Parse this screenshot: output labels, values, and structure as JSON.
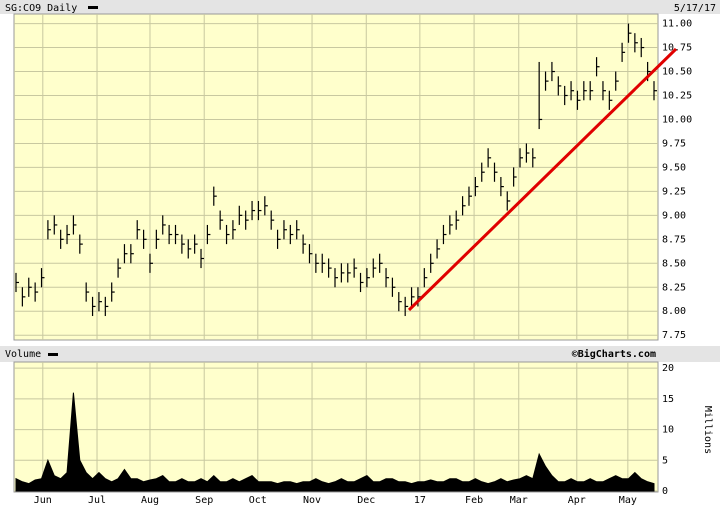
{
  "chart_data": [
    {
      "type": "ohlc",
      "title": "SG:CO9 Daily",
      "date": "5/17/17",
      "color": "#000000",
      "high": [
        8.4,
        8.25,
        8.35,
        8.3,
        8.45,
        8.95,
        9.0,
        8.85,
        8.9,
        9.0,
        8.8,
        8.3,
        8.15,
        8.2,
        8.15,
        8.3,
        8.55,
        8.7,
        8.7,
        8.95,
        8.85,
        8.6,
        8.85,
        9.0,
        8.9,
        8.9,
        8.8,
        8.75,
        8.8,
        8.65,
        8.9,
        9.3,
        9.05,
        8.9,
        8.95,
        9.1,
        9.05,
        9.15,
        9.15,
        9.2,
        9.05,
        8.85,
        8.95,
        8.9,
        8.95,
        8.8,
        8.7,
        8.6,
        8.6,
        8.55,
        8.45,
        8.5,
        8.5,
        8.55,
        8.4,
        8.45,
        8.55,
        8.6,
        8.45,
        8.35,
        8.2,
        8.15,
        8.25,
        8.25,
        8.45,
        8.6,
        8.75,
        8.9,
        9.0,
        9.05,
        9.2,
        9.3,
        9.4,
        9.55,
        9.7,
        9.55,
        9.4,
        9.25,
        9.5,
        9.7,
        9.75,
        9.7,
        10.6,
        10.5,
        10.6,
        10.45,
        10.35,
        10.4,
        10.3,
        10.4,
        10.4,
        10.65,
        10.4,
        10.3,
        10.5,
        10.8,
        11.0,
        10.9,
        10.85,
        10.6,
        10.4
      ],
      "low": [
        8.2,
        8.05,
        8.15,
        8.1,
        8.25,
        8.75,
        8.8,
        8.65,
        8.7,
        8.8,
        8.6,
        8.1,
        7.95,
        8.0,
        7.95,
        8.1,
        8.35,
        8.5,
        8.5,
        8.75,
        8.65,
        8.4,
        8.65,
        8.8,
        8.7,
        8.7,
        8.6,
        8.55,
        8.6,
        8.45,
        8.7,
        9.1,
        8.85,
        8.7,
        8.75,
        8.9,
        8.85,
        8.95,
        8.95,
        9.0,
        8.85,
        8.65,
        8.75,
        8.7,
        8.75,
        8.6,
        8.5,
        8.4,
        8.4,
        8.35,
        8.25,
        8.3,
        8.3,
        8.35,
        8.2,
        8.25,
        8.35,
        8.4,
        8.25,
        8.15,
        8.0,
        7.95,
        8.05,
        8.05,
        8.25,
        8.4,
        8.55,
        8.7,
        8.8,
        8.85,
        9.0,
        9.1,
        9.2,
        9.35,
        9.5,
        9.35,
        9.2,
        9.05,
        9.3,
        9.5,
        9.55,
        9.5,
        9.9,
        10.3,
        10.4,
        10.25,
        10.15,
        10.2,
        10.1,
        10.2,
        10.2,
        10.45,
        10.2,
        10.1,
        10.3,
        10.6,
        10.8,
        10.7,
        10.65,
        10.4,
        10.2
      ],
      "values": [
        8.3,
        8.15,
        8.25,
        8.2,
        8.35,
        8.85,
        8.9,
        8.75,
        8.8,
        8.9,
        8.7,
        8.2,
        8.05,
        8.1,
        8.05,
        8.2,
        8.45,
        8.6,
        8.6,
        8.85,
        8.75,
        8.5,
        8.75,
        8.9,
        8.8,
        8.8,
        8.7,
        8.65,
        8.7,
        8.55,
        8.8,
        9.2,
        8.95,
        8.8,
        8.85,
        9.0,
        8.95,
        9.05,
        9.05,
        9.1,
        8.95,
        8.75,
        8.85,
        8.8,
        8.85,
        8.7,
        8.6,
        8.5,
        8.5,
        8.45,
        8.35,
        8.4,
        8.4,
        8.45,
        8.3,
        8.35,
        8.45,
        8.5,
        8.35,
        8.25,
        8.1,
        8.05,
        8.15,
        8.15,
        8.35,
        8.5,
        8.65,
        8.8,
        8.9,
        8.95,
        9.1,
        9.2,
        9.3,
        9.45,
        9.6,
        9.45,
        9.3,
        9.15,
        9.4,
        9.6,
        9.65,
        9.6,
        10.0,
        10.4,
        10.5,
        10.35,
        10.25,
        10.3,
        10.2,
        10.3,
        10.3,
        10.55,
        10.3,
        10.2,
        10.4,
        10.7,
        10.9,
        10.8,
        10.75,
        10.5,
        10.3
      ],
      "ylim": [
        7.7,
        11.1
      ],
      "yticks": [
        {
          "value": 7.75,
          "label": "7.75"
        },
        {
          "value": 8,
          "label": "8.00"
        },
        {
          "value": 8.25,
          "label": "8.25"
        },
        {
          "value": 8.5,
          "label": "8.50"
        },
        {
          "value": 8.75,
          "label": "8.75"
        },
        {
          "value": 9,
          "label": "9.00"
        },
        {
          "value": 9.25,
          "label": "9.25"
        },
        {
          "value": 9.5,
          "label": "9.50"
        },
        {
          "value": 9.75,
          "label": "9.75"
        },
        {
          "value": 10,
          "label": "10.00"
        },
        {
          "value": 10.25,
          "label": "10.25"
        },
        {
          "value": 10.5,
          "label": "10.50"
        },
        {
          "value": 10.75,
          "label": "10.75"
        },
        {
          "value": 11,
          "label": "11.00"
        }
      ],
      "grid": true
    },
    {
      "type": "area",
      "title": "Volume",
      "source": "©BigCharts.com",
      "ylabel": "Millions",
      "color": "#000000",
      "values": [
        2,
        1.5,
        1.2,
        1.8,
        2,
        5,
        2.5,
        2,
        3,
        16,
        5,
        3,
        2,
        3,
        2,
        1.5,
        2,
        3.5,
        2,
        2,
        1.5,
        1.8,
        2,
        2.5,
        1.5,
        1.5,
        2,
        1.5,
        1.5,
        2,
        1.5,
        2.5,
        1.5,
        1.5,
        2,
        1.5,
        2,
        2.5,
        1.5,
        1.5,
        1.5,
        1.2,
        1.5,
        1.5,
        1.2,
        1.5,
        1.5,
        2,
        1.5,
        1.2,
        1.5,
        2,
        1.5,
        1.5,
        2,
        2.5,
        1.5,
        1.5,
        2,
        2,
        1.5,
        1.5,
        1.2,
        1.5,
        1.5,
        1.8,
        1.5,
        1.5,
        2,
        2,
        1.5,
        1.5,
        2,
        1.5,
        1.2,
        1.5,
        2,
        1.5,
        1.8,
        2,
        2.5,
        2,
        6,
        4,
        2.5,
        1.5,
        1.5,
        2,
        1.5,
        1.5,
        2,
        1.5,
        1.5,
        2,
        2.5,
        2,
        2,
        3,
        2,
        1.5,
        1.2
      ],
      "ylim": [
        0,
        21
      ],
      "yticks": [
        0,
        5,
        10,
        15,
        20
      ],
      "xticks": [
        {
          "value": 4.2,
          "label": "Jun"
        },
        {
          "value": 12.7,
          "label": "Jul"
        },
        {
          "value": 21,
          "label": "Aug"
        },
        {
          "value": 29.5,
          "label": "Sep"
        },
        {
          "value": 37.9,
          "label": "Oct"
        },
        {
          "value": 46.4,
          "label": "Nov"
        },
        {
          "value": 54.9,
          "label": "Dec"
        },
        {
          "value": 63.3,
          "label": "17"
        },
        {
          "value": 71.8,
          "label": "Feb"
        },
        {
          "value": 78.8,
          "label": "Mar"
        },
        {
          "value": 87.9,
          "label": "Apr"
        },
        {
          "value": 95.9,
          "label": "May"
        }
      ],
      "grid": true
    }
  ]
}
